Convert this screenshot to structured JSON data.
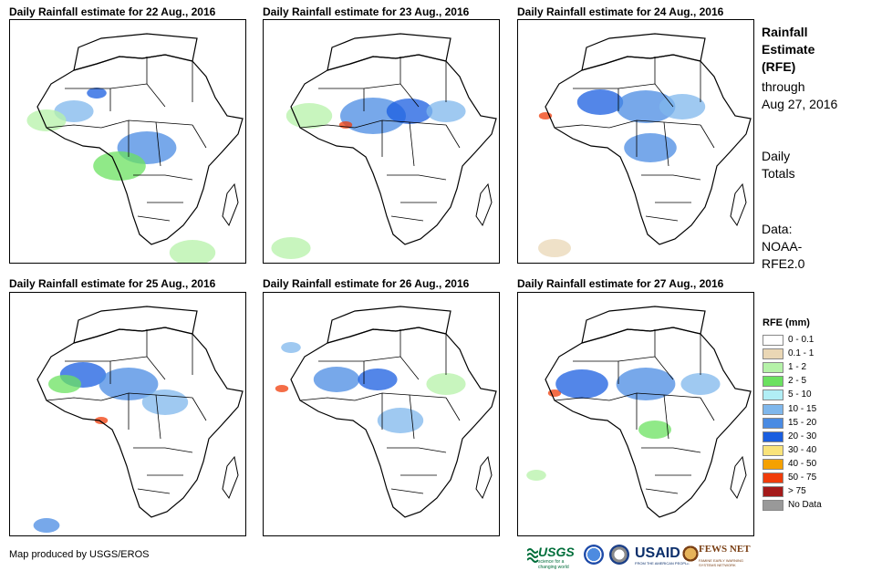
{
  "panels": [
    {
      "title": "Daily Rainfall estimate for 22 Aug., 2016"
    },
    {
      "title": "Daily Rainfall estimate for 23 Aug., 2016"
    },
    {
      "title": "Daily Rainfall estimate for 24 Aug., 2016"
    },
    {
      "title": "Daily Rainfall estimate for 25 Aug., 2016"
    },
    {
      "title": "Daily Rainfall estimate for 26 Aug., 2016"
    },
    {
      "title": "Daily Rainfall estimate for 27 Aug., 2016"
    }
  ],
  "side": {
    "title_line1": "Rainfall",
    "title_line2": "Estimate",
    "title_line3": "(RFE)",
    "through_label": "through",
    "through_date": "Aug 27, 2016",
    "totals_line1": "Daily",
    "totals_line2": "Totals",
    "data_line1": "Data:",
    "data_line2": "NOAA-",
    "data_line3": "RFE2.0"
  },
  "legend": {
    "title": "RFE (mm)",
    "items": [
      {
        "label": "0 - 0.1",
        "color": "#ffffff"
      },
      {
        "label": "0.1 - 1",
        "color": "#ead7b5"
      },
      {
        "label": "1 - 2",
        "color": "#b5f2a8"
      },
      {
        "label": "2 - 5",
        "color": "#6be160"
      },
      {
        "label": "5 - 10",
        "color": "#b1eef5"
      },
      {
        "label": "10 - 15",
        "color": "#7fb7ec"
      },
      {
        "label": "15 - 20",
        "color": "#4a8be3"
      },
      {
        "label": "20 - 30",
        "color": "#1a5ee0"
      },
      {
        "label": "30 - 40",
        "color": "#f9e37a"
      },
      {
        "label": "40 - 50",
        "color": "#f5a100"
      },
      {
        "label": "50 - 75",
        "color": "#f03c0a"
      },
      {
        "label": "> 75",
        "color": "#a41a1a"
      },
      {
        "label": "No Data",
        "color": "#999999"
      }
    ]
  },
  "credit": "Map produced by USGS/EROS",
  "logos": {
    "usgs": "USGS",
    "usgs_tagline": "science for a changing world",
    "usaid": "USAID",
    "usaid_tagline": "FROM THE AMERICAN PEOPLE",
    "fews": "FEWS NET",
    "fews_tagline": "FAMINE EARLY WARNING SYSTEMS NETWORK"
  }
}
